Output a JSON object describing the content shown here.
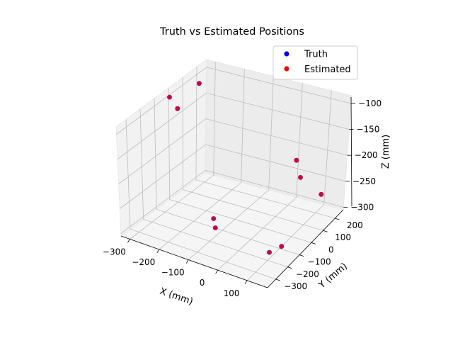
{
  "chart_data": {
    "type": "scatter",
    "projection": "3d",
    "title": "Truth vs Estimated Positions",
    "xlabel": "X (mm)",
    "ylabel": "Y (mm)",
    "zlabel": "Z (mm)",
    "xlim": [
      -330,
      170
    ],
    "ylim": [
      -370,
      270
    ],
    "zlim": [
      -305,
      -85
    ],
    "x_ticks": [
      "−300",
      "−200",
      "−100",
      "0",
      "100"
    ],
    "y_ticks": [
      "−300",
      "−200",
      "−100",
      "0",
      "100",
      "200"
    ],
    "z_ticks": [
      "−100",
      "−150",
      "−200",
      "−250",
      "−300"
    ],
    "grid": true,
    "legend_position": "top-right",
    "series": [
      {
        "name": "Truth",
        "color": "#0000ff",
        "points": [
          {
            "x": -304,
            "y": -46,
            "z": -90
          },
          {
            "x": -290,
            "y": -19,
            "z": -116
          },
          {
            "x": -270,
            "y": 94,
            "z": -87
          },
          {
            "x": -117,
            "y": -116,
            "z": -300
          },
          {
            "x": -89,
            "y": -191,
            "z": -262
          },
          {
            "x": 104,
            "y": -93,
            "z": -302
          },
          {
            "x": 127,
            "y": -246,
            "z": -276
          },
          {
            "x": 45,
            "y": 190,
            "z": -243
          },
          {
            "x": 10,
            "y": 232,
            "z": -224
          },
          {
            "x": 121,
            "y": 189,
            "z": -264
          }
        ]
      },
      {
        "name": "Estimated",
        "color": "#ff0000",
        "points": [
          {
            "x": -304,
            "y": -46,
            "z": -90
          },
          {
            "x": -290,
            "y": -19,
            "z": -116
          },
          {
            "x": -270,
            "y": 94,
            "z": -87
          },
          {
            "x": -117,
            "y": -116,
            "z": -300
          },
          {
            "x": -89,
            "y": -191,
            "z": -262
          },
          {
            "x": 104,
            "y": -93,
            "z": -302
          },
          {
            "x": 127,
            "y": -246,
            "z": -276
          },
          {
            "x": 45,
            "y": 190,
            "z": -243
          },
          {
            "x": 10,
            "y": 232,
            "z": -224
          },
          {
            "x": 121,
            "y": 189,
            "z": -264
          }
        ]
      }
    ]
  }
}
